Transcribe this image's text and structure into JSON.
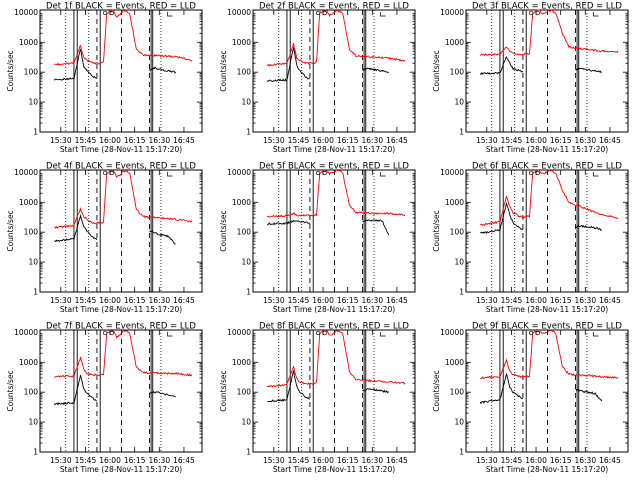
{
  "figure": {
    "x_tick_labels": [
      "15:30",
      "15:45",
      "16:00",
      "16:15",
      "16:30",
      "16:45"
    ],
    "x_ticks_minutes": [
      30,
      45,
      60,
      75,
      90,
      105
    ],
    "xlim_minutes": [
      17.333,
      116
    ],
    "y_tick_labels": [
      "1",
      "10",
      "100",
      "1000",
      "10000"
    ],
    "y_scale": "log",
    "ylim": [
      1,
      12000
    ],
    "ylabel": "Counts/sec",
    "xlabel": "Start Time (28-Nov-11 15:17:20)",
    "colors": {
      "events": "#000000",
      "lld": "#ff0000",
      "markers": "#000000",
      "frame": "#000000"
    }
  },
  "chart_data": [
    {
      "type": "line",
      "title": "Det 1f BLACK = Events, RED = LLD",
      "xlabel": "Start Time (28-Nov-11 15:17:20)",
      "ylabel": "Counts/sec",
      "series": [
        {
          "name": "Events",
          "color": "#000000",
          "x": [
            26,
            38,
            42,
            44,
            46,
            50,
            52
          ],
          "y": [
            55,
            62,
            600,
            160,
            110,
            70,
            60
          ]
        },
        {
          "name": "Events",
          "color": "#000000",
          "x": [
            84,
            87,
            92,
            96,
            100
          ],
          "y": [
            120,
            140,
            120,
            110,
            100
          ]
        },
        {
          "name": "LLD",
          "color": "#ff0000",
          "x": [
            26,
            38,
            42,
            44,
            46,
            50,
            54,
            56,
            58,
            60,
            62,
            64,
            66,
            68,
            70,
            72,
            76,
            80,
            100,
            110
          ],
          "y": [
            180,
            200,
            800,
            300,
            250,
            200,
            200,
            220,
            9000,
            11000,
            11500,
            7000,
            8000,
            11500,
            11000,
            9000,
            600,
            380,
            330,
            250
          ]
        }
      ]
    },
    {
      "type": "line",
      "title": "Det 2f BLACK = Events, RED = LLD",
      "xlabel": "Start Time (28-Nov-11 15:17:20)",
      "ylabel": "Counts/sec",
      "series": [
        {
          "name": "Events",
          "color": "#000000",
          "x": [
            26,
            38,
            42,
            44,
            46,
            50,
            52
          ],
          "y": [
            50,
            55,
            700,
            170,
            110,
            65,
            60
          ]
        },
        {
          "name": "Events",
          "color": "#000000",
          "x": [
            84,
            87,
            92,
            96,
            100
          ],
          "y": [
            120,
            130,
            120,
            110,
            100
          ]
        },
        {
          "name": "LLD",
          "color": "#ff0000",
          "x": [
            26,
            38,
            42,
            44,
            46,
            50,
            54,
            56,
            58,
            60,
            62,
            64,
            66,
            68,
            70,
            72,
            76,
            80,
            100,
            110
          ],
          "y": [
            170,
            200,
            900,
            300,
            240,
            200,
            200,
            220,
            9500,
            11000,
            11500,
            8000,
            9000,
            11500,
            11000,
            9000,
            600,
            350,
            300,
            230
          ]
        }
      ]
    },
    {
      "type": "line",
      "title": "Det 3f BLACK = Events, RED = LLD",
      "xlabel": "Start Time (28-Nov-11 15:17:20)",
      "ylabel": "Counts/sec",
      "series": [
        {
          "name": "Events",
          "color": "#000000",
          "x": [
            26,
            38,
            42,
            44,
            46,
            50,
            52
          ],
          "y": [
            90,
            95,
            320,
            200,
            130,
            110,
            100
          ]
        },
        {
          "name": "Events",
          "color": "#000000",
          "x": [
            84,
            87,
            92,
            96,
            100
          ],
          "y": [
            120,
            130,
            120,
            110,
            100
          ]
        },
        {
          "name": "LLD",
          "color": "#ff0000",
          "x": [
            26,
            38,
            42,
            44,
            46,
            50,
            54,
            56,
            58,
            60,
            62,
            64,
            66,
            68,
            70,
            72,
            76,
            80,
            100,
            110
          ],
          "y": [
            380,
            400,
            700,
            500,
            420,
            400,
            400,
            420,
            9500,
            11000,
            11500,
            9000,
            10000,
            11500,
            11000,
            9500,
            2000,
            700,
            500,
            470
          ]
        }
      ]
    },
    {
      "type": "line",
      "title": "Det 4f BLACK = Events, RED = LLD",
      "xlabel": "Start Time (28-Nov-11 15:17:20)",
      "ylabel": "Counts/sec",
      "series": [
        {
          "name": "Events",
          "color": "#000000",
          "x": [
            26,
            38,
            42,
            44,
            46,
            50,
            52
          ],
          "y": [
            50,
            60,
            350,
            160,
            110,
            65,
            55
          ]
        },
        {
          "name": "Events",
          "color": "#000000",
          "x": [
            84,
            87,
            92,
            96,
            100
          ],
          "y": [
            110,
            95,
            80,
            70,
            40
          ]
        },
        {
          "name": "LLD",
          "color": "#ff0000",
          "x": [
            26,
            38,
            42,
            44,
            46,
            50,
            54,
            56,
            58,
            60,
            62,
            64,
            66,
            68,
            70,
            72,
            76,
            80,
            100,
            110
          ],
          "y": [
            140,
            170,
            600,
            330,
            260,
            200,
            200,
            220,
            9000,
            11000,
            11500,
            7000,
            8000,
            11500,
            11000,
            9000,
            600,
            330,
            270,
            220
          ]
        }
      ]
    },
    {
      "type": "line",
      "title": "Det 5f BLACK = Events, RED = LLD",
      "xlabel": "Start Time (28-Nov-11 15:17:20)",
      "ylabel": "Counts/sec",
      "series": [
        {
          "name": "Events",
          "color": "#000000",
          "x": [
            26,
            38,
            42,
            44,
            46,
            50,
            52
          ],
          "y": [
            190,
            200,
            230,
            230,
            220,
            210,
            200
          ]
        },
        {
          "name": "Events",
          "color": "#000000",
          "x": [
            84,
            87,
            92,
            96,
            100
          ],
          "y": [
            230,
            240,
            250,
            240,
            80
          ]
        },
        {
          "name": "LLD",
          "color": "#ff0000",
          "x": [
            26,
            38,
            42,
            44,
            46,
            50,
            54,
            56,
            58,
            60,
            62,
            64,
            66,
            68,
            70,
            72,
            76,
            80,
            100,
            110
          ],
          "y": [
            340,
            350,
            420,
            370,
            360,
            360,
            360,
            380,
            9500,
            11000,
            11500,
            9000,
            10000,
            11500,
            11000,
            9500,
            800,
            450,
            420,
            380
          ]
        }
      ]
    },
    {
      "type": "line",
      "title": "Det 6f BLACK = Events, RED = LLD",
      "xlabel": "Start Time (28-Nov-11 15:17:20)",
      "ylabel": "Counts/sec",
      "series": [
        {
          "name": "Events",
          "color": "#000000",
          "x": [
            26,
            38,
            42,
            44,
            46,
            50,
            52
          ],
          "y": [
            90,
            120,
            900,
            400,
            200,
            140,
            120
          ]
        },
        {
          "name": "Events",
          "color": "#000000",
          "x": [
            84,
            87,
            92,
            96,
            100
          ],
          "y": [
            150,
            160,
            150,
            140,
            120
          ]
        },
        {
          "name": "LLD",
          "color": "#ff0000",
          "x": [
            26,
            38,
            42,
            44,
            46,
            50,
            54,
            56,
            58,
            60,
            62,
            64,
            66,
            68,
            70,
            72,
            76,
            80,
            100,
            110
          ],
          "y": [
            170,
            220,
            1600,
            700,
            450,
            330,
            320,
            350,
            9500,
            11000,
            11500,
            9000,
            10000,
            11500,
            11000,
            9500,
            2500,
            1000,
            380,
            300
          ]
        }
      ]
    },
    {
      "type": "line",
      "title": "Det 7f BLACK = Events, RED = LLD",
      "xlabel": "Start Time (28-Nov-11 15:17:20)",
      "ylabel": "Counts/sec",
      "series": [
        {
          "name": "Events",
          "color": "#000000",
          "x": [
            26,
            38,
            42,
            44,
            46,
            50,
            52
          ],
          "y": [
            40,
            45,
            360,
            130,
            90,
            60,
            50
          ]
        },
        {
          "name": "Events",
          "color": "#000000",
          "x": [
            84,
            87,
            92,
            96,
            100
          ],
          "y": [
            90,
            100,
            90,
            80,
            70
          ]
        },
        {
          "name": "LLD",
          "color": "#ff0000",
          "x": [
            26,
            38,
            42,
            44,
            46,
            50,
            54,
            56,
            58,
            60,
            62,
            64,
            66,
            68,
            70,
            72,
            76,
            80,
            100,
            110
          ],
          "y": [
            330,
            350,
            1400,
            600,
            420,
            380,
            380,
            400,
            9000,
            11000,
            11500,
            7000,
            8000,
            11500,
            11000,
            9000,
            700,
            450,
            420,
            370
          ]
        }
      ]
    },
    {
      "type": "line",
      "title": "Det 8f BLACK = Events, RED = LLD",
      "xlabel": "Start Time (28-Nov-11 15:17:20)",
      "ylabel": "Counts/sec",
      "series": [
        {
          "name": "Events",
          "color": "#000000",
          "x": [
            26,
            38,
            42,
            44,
            46,
            50,
            52
          ],
          "y": [
            50,
            55,
            500,
            150,
            100,
            65,
            60
          ]
        },
        {
          "name": "Events",
          "color": "#000000",
          "x": [
            84,
            87,
            92,
            96,
            100
          ],
          "y": [
            110,
            130,
            120,
            110,
            100
          ]
        },
        {
          "name": "LLD",
          "color": "#ff0000",
          "x": [
            26,
            38,
            42,
            44,
            46,
            50,
            54,
            56,
            58,
            60,
            62,
            64,
            66,
            68,
            70,
            72,
            76,
            80,
            100,
            110
          ],
          "y": [
            150,
            180,
            700,
            280,
            220,
            190,
            190,
            210,
            9500,
            11000,
            11500,
            8000,
            9000,
            11500,
            11000,
            9000,
            500,
            260,
            220,
            200
          ]
        }
      ]
    },
    {
      "type": "line",
      "title": "Det 9f BLACK = Events, RED = LLD",
      "xlabel": "Start Time (28-Nov-11 15:17:20)",
      "ylabel": "Counts/sec",
      "series": [
        {
          "name": "Events",
          "color": "#000000",
          "x": [
            26,
            38,
            42,
            44,
            46,
            50,
            52
          ],
          "y": [
            45,
            55,
            400,
            150,
            100,
            70,
            60
          ]
        },
        {
          "name": "Events",
          "color": "#000000",
          "x": [
            84,
            87,
            92,
            96,
            100
          ],
          "y": [
            120,
            110,
            100,
            90,
            50
          ]
        },
        {
          "name": "LLD",
          "color": "#ff0000",
          "x": [
            26,
            38,
            42,
            44,
            46,
            50,
            54,
            56,
            58,
            60,
            62,
            64,
            66,
            68,
            70,
            72,
            76,
            80,
            100,
            110
          ],
          "y": [
            300,
            330,
            1200,
            500,
            380,
            330,
            320,
            340,
            9500,
            11000,
            11500,
            9000,
            10000,
            11500,
            11000,
            9500,
            700,
            400,
            330,
            300
          ]
        }
      ]
    }
  ]
}
